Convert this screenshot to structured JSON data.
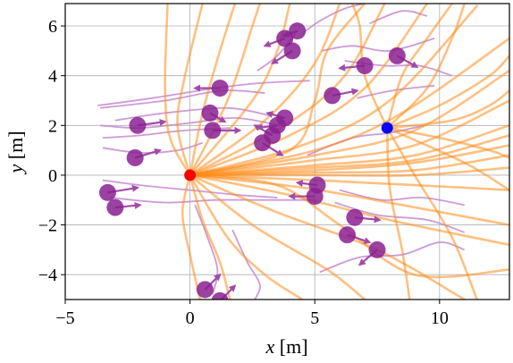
{
  "chart_data": {
    "type": "scatter",
    "xlabel_var": "x",
    "xlabel_unit": " [m]",
    "ylabel_var": "y",
    "ylabel_unit": " [m]",
    "xlim": [
      -5,
      12.8
    ],
    "ylim": [
      -5,
      6.9
    ],
    "xticks": [
      -5,
      0,
      5,
      10
    ],
    "yticks": [
      -4,
      -2,
      0,
      2,
      4,
      6
    ],
    "grid": true,
    "colors": {
      "trajectory": "#ff8c1a",
      "pedestrian": "#8a2090",
      "history": "#c48ad0",
      "start": "#ff0000",
      "goal": "#0000ff"
    },
    "start": [
      0,
      0
    ],
    "goal": [
      7.9,
      1.9
    ],
    "pedestrians": [
      {
        "x": 4.3,
        "y": 5.8,
        "dx": -0.55,
        "dy": -0.2
      },
      {
        "x": 3.8,
        "y": 5.5,
        "dx": -0.8,
        "dy": -0.3
      },
      {
        "x": 4.1,
        "y": 5.0,
        "dx": -0.8,
        "dy": -0.5
      },
      {
        "x": 7.0,
        "y": 4.4,
        "dx": -1.0,
        "dy": -0.1
      },
      {
        "x": 8.3,
        "y": 4.8,
        "dx": 0.8,
        "dy": -0.45
      },
      {
        "x": 1.2,
        "y": 3.5,
        "dx": -1.0,
        "dy": 0.0
      },
      {
        "x": 5.7,
        "y": 3.2,
        "dx": 1.0,
        "dy": 0.2
      },
      {
        "x": 0.8,
        "y": 2.5,
        "dx": 0.6,
        "dy": -0.35
      },
      {
        "x": 3.8,
        "y": 2.3,
        "dx": -0.7,
        "dy": 0.2
      },
      {
        "x": 3.5,
        "y": 2.0,
        "dx": -0.8,
        "dy": -0.1
      },
      {
        "x": 0.9,
        "y": 1.8,
        "dx": 1.1,
        "dy": 0.0
      },
      {
        "x": 3.3,
        "y": 1.6,
        "dx": -0.7,
        "dy": 0.4
      },
      {
        "x": 2.9,
        "y": 1.3,
        "dx": 0.8,
        "dy": -0.5
      },
      {
        "x": -2.1,
        "y": 2.0,
        "dx": 1.1,
        "dy": 0.15
      },
      {
        "x": -2.2,
        "y": 0.7,
        "dx": 1.0,
        "dy": 0.3
      },
      {
        "x": -3.3,
        "y": -0.7,
        "dx": 1.2,
        "dy": 0.2
      },
      {
        "x": -3.0,
        "y": -1.3,
        "dx": 1.0,
        "dy": 0.1
      },
      {
        "x": 5.1,
        "y": -0.4,
        "dx": -0.8,
        "dy": 0.1
      },
      {
        "x": 5.0,
        "y": -0.85,
        "dx": -1.0,
        "dy": 0.0
      },
      {
        "x": 6.6,
        "y": -1.7,
        "dx": 1.0,
        "dy": -0.1
      },
      {
        "x": 6.3,
        "y": -2.4,
        "dx": 0.9,
        "dy": -0.3
      },
      {
        "x": 7.5,
        "y": -3.0,
        "dx": -0.7,
        "dy": -0.6
      },
      {
        "x": 0.6,
        "y": -4.6,
        "dx": 0.6,
        "dy": 0.6
      },
      {
        "x": 1.2,
        "y": -5.05,
        "dx": 0.6,
        "dy": 0.6
      }
    ],
    "pedestrian_histories": [
      [
        [
          -3.7,
          2.8
        ],
        [
          -1.5,
          3.1
        ],
        [
          1.0,
          3.5
        ],
        [
          2.8,
          3.7
        ],
        [
          4.8,
          3.8
        ]
      ],
      [
        [
          -3.6,
          2.7
        ],
        [
          -1.0,
          3.0
        ],
        [
          1.3,
          3.4
        ],
        [
          3.0,
          3.3
        ]
      ],
      [
        [
          -3.0,
          2.2
        ],
        [
          -1.0,
          2.5
        ],
        [
          1.5,
          2.7
        ],
        [
          3.2,
          2.4
        ]
      ],
      [
        [
          -3.6,
          2.0
        ],
        [
          -2.0,
          1.9
        ],
        [
          0.0,
          2.1
        ],
        [
          1.8,
          2.3
        ],
        [
          3.6,
          2.0
        ]
      ],
      [
        [
          -3.5,
          1.5
        ],
        [
          -2.0,
          1.6
        ],
        [
          -0.2,
          1.8
        ],
        [
          1.6,
          1.9
        ]
      ],
      [
        [
          -3.5,
          1.1
        ],
        [
          -2.0,
          0.9
        ],
        [
          -0.5,
          1.0
        ],
        [
          0.5,
          1.3
        ]
      ],
      [
        [
          -3.5,
          -0.2
        ],
        [
          -2.0,
          -0.4
        ],
        [
          0.0,
          -0.6
        ],
        [
          2.0,
          -0.8
        ],
        [
          3.5,
          -0.9
        ]
      ],
      [
        [
          -3.2,
          -0.9
        ],
        [
          -1.0,
          -1.1
        ],
        [
          1.0,
          -1.0
        ],
        [
          3.0,
          -1.0
        ],
        [
          5.0,
          -1.0
        ]
      ],
      [
        [
          5.3,
          5.0
        ],
        [
          6.5,
          5.2
        ],
        [
          8.0,
          5.0
        ],
        [
          9.8,
          5.5
        ]
      ],
      [
        [
          7.2,
          6.1
        ],
        [
          8.5,
          6.6
        ],
        [
          9.5,
          6.4
        ]
      ],
      [
        [
          6.2,
          4.6
        ],
        [
          7.8,
          4.4
        ],
        [
          9.2,
          4.4
        ],
        [
          10.5,
          4.0
        ]
      ],
      [
        [
          6.7,
          3.1
        ],
        [
          8.1,
          3.4
        ],
        [
          9.8,
          3.6
        ]
      ],
      [
        [
          4.7,
          0.8
        ],
        [
          6.5,
          1.5
        ],
        [
          8.0,
          1.7
        ],
        [
          9.4,
          2.0
        ]
      ],
      [
        [
          6.0,
          -0.6
        ],
        [
          7.7,
          -1.0
        ],
        [
          9.3,
          -0.9
        ],
        [
          11.0,
          -1.2
        ]
      ],
      [
        [
          5.8,
          -1.1
        ],
        [
          7.5,
          -1.6
        ],
        [
          9.5,
          -1.8
        ],
        [
          11.0,
          -2.3
        ]
      ],
      [
        [
          5.2,
          -3.9
        ],
        [
          6.8,
          -3.3
        ],
        [
          8.5,
          -3.2
        ],
        [
          10.0,
          -2.7
        ],
        [
          11.0,
          -3.0
        ]
      ],
      [
        [
          1.7,
          -2.2
        ],
        [
          2.3,
          -3.5
        ],
        [
          2.8,
          -4.4
        ],
        [
          2.6,
          -5.0
        ]
      ],
      [
        [
          0.2,
          -1.2
        ],
        [
          0.7,
          -2.5
        ],
        [
          1.1,
          -3.8
        ],
        [
          0.9,
          -4.8
        ]
      ],
      [
        [
          4.5,
          5.7
        ],
        [
          5.2,
          6.2
        ],
        [
          6.2,
          6.7
        ],
        [
          7.0,
          6.9
        ]
      ],
      [
        [
          2.7,
          4.2
        ],
        [
          3.5,
          4.8
        ],
        [
          4.3,
          5.8
        ]
      ]
    ],
    "orange_paths": [
      [
        [
          0,
          0
        ],
        [
          -0.8,
          1.5
        ],
        [
          -1.0,
          3.5
        ],
        [
          -0.9,
          6.9
        ]
      ],
      [
        [
          0,
          0
        ],
        [
          -0.5,
          2.0
        ],
        [
          -0.2,
          4.0
        ],
        [
          0.5,
          6.9
        ]
      ],
      [
        [
          0,
          0
        ],
        [
          0.5,
          2.5
        ],
        [
          1.2,
          5.0
        ],
        [
          1.8,
          6.9
        ]
      ],
      [
        [
          0,
          0
        ],
        [
          1.5,
          3.0
        ],
        [
          2.5,
          6.0
        ],
        [
          2.8,
          6.9
        ]
      ],
      [
        [
          0,
          0
        ],
        [
          2.5,
          3.0
        ],
        [
          3.5,
          5.0
        ],
        [
          4.0,
          6.9
        ]
      ],
      [
        [
          0,
          0
        ],
        [
          3.0,
          2.2
        ],
        [
          5.0,
          4.5
        ],
        [
          6.0,
          6.9
        ]
      ],
      [
        [
          0,
          0
        ],
        [
          3.8,
          2.0
        ],
        [
          6.2,
          4.0
        ],
        [
          7.8,
          6.9
        ]
      ],
      [
        [
          0,
          0
        ],
        [
          4.0,
          1.6
        ],
        [
          7.0,
          3.5
        ],
        [
          9.5,
          6.9
        ]
      ],
      [
        [
          0,
          0
        ],
        [
          4.5,
          1.2
        ],
        [
          8.0,
          3.0
        ],
        [
          11.5,
          6.8
        ]
      ],
      [
        [
          0,
          0
        ],
        [
          5.0,
          1.0
        ],
        [
          8.5,
          2.5
        ],
        [
          12.8,
          5.5
        ]
      ],
      [
        [
          0,
          0
        ],
        [
          5.0,
          0.8
        ],
        [
          9.0,
          1.8
        ],
        [
          12.8,
          4.2
        ]
      ],
      [
        [
          0,
          0
        ],
        [
          5.0,
          0.6
        ],
        [
          9.0,
          1.2
        ],
        [
          12.8,
          3.0
        ]
      ],
      [
        [
          0,
          0
        ],
        [
          5.0,
          0.4
        ],
        [
          9.0,
          0.8
        ],
        [
          12.8,
          2.0
        ]
      ],
      [
        [
          0,
          0
        ],
        [
          5.0,
          0.3
        ],
        [
          9.0,
          0.6
        ],
        [
          12.8,
          1.6
        ]
      ],
      [
        [
          0,
          0
        ],
        [
          5.0,
          0.2
        ],
        [
          9.0,
          0.5
        ],
        [
          12.8,
          1.2
        ]
      ],
      [
        [
          0,
          0
        ],
        [
          5.0,
          0.1
        ],
        [
          9.0,
          0.2
        ],
        [
          12.8,
          0.8
        ]
      ],
      [
        [
          0,
          0
        ],
        [
          5.0,
          0.0
        ],
        [
          9.0,
          0.0
        ],
        [
          12.8,
          0.3
        ]
      ],
      [
        [
          0,
          0
        ],
        [
          5.0,
          -0.2
        ],
        [
          9.0,
          -0.4
        ],
        [
          12.8,
          -0.6
        ]
      ],
      [
        [
          0,
          0
        ],
        [
          4.5,
          -0.5
        ],
        [
          8.5,
          -1.2
        ],
        [
          12.8,
          -2.0
        ]
      ],
      [
        [
          0,
          0
        ],
        [
          4.0,
          -0.8
        ],
        [
          8.0,
          -1.8
        ],
        [
          12.8,
          -2.8
        ]
      ],
      [
        [
          0,
          0
        ],
        [
          3.5,
          -1.5
        ],
        [
          7.5,
          -3.0
        ],
        [
          11.0,
          -5.0
        ]
      ],
      [
        [
          0,
          0
        ],
        [
          2.5,
          -2.0
        ],
        [
          5.5,
          -3.8
        ],
        [
          7.0,
          -5.0
        ]
      ],
      [
        [
          0,
          0
        ],
        [
          1.5,
          -2.5
        ],
        [
          3.0,
          -4.0
        ],
        [
          4.5,
          -5.0
        ]
      ],
      [
        [
          0,
          0
        ],
        [
          0.5,
          -1.8
        ],
        [
          1.2,
          -3.5
        ],
        [
          1.6,
          -5.0
        ]
      ],
      [
        [
          0,
          0
        ],
        [
          -0.3,
          -1.5
        ],
        [
          0.0,
          -3.2
        ],
        [
          0.4,
          -5.0
        ]
      ],
      [
        [
          0,
          0
        ],
        [
          4.0,
          1.0
        ],
        [
          5.0,
          3.0
        ],
        [
          5.5,
          5.0
        ],
        [
          7.0,
          6.9
        ]
      ],
      [
        [
          0,
          0
        ],
        [
          3.5,
          -0.4
        ],
        [
          6.0,
          -2.0
        ],
        [
          9.0,
          -4.0
        ],
        [
          12.8,
          -3.8
        ]
      ],
      [
        [
          7.9,
          1.9
        ],
        [
          9.5,
          3.5
        ],
        [
          10.5,
          5.5
        ],
        [
          11.0,
          6.9
        ]
      ],
      [
        [
          7.9,
          1.9
        ],
        [
          10.0,
          2.8
        ],
        [
          12.0,
          4.0
        ],
        [
          12.8,
          4.8
        ]
      ],
      [
        [
          7.9,
          1.9
        ],
        [
          10.0,
          1.5
        ],
        [
          12.0,
          1.0
        ],
        [
          12.8,
          0.7
        ]
      ],
      [
        [
          7.9,
          1.9
        ],
        [
          9.0,
          0.0
        ],
        [
          10.5,
          -2.5
        ],
        [
          11.5,
          -5.0
        ]
      ],
      [
        [
          7.9,
          1.9
        ],
        [
          8.0,
          -0.5
        ],
        [
          8.5,
          -3.0
        ],
        [
          8.8,
          -5.0
        ]
      ],
      [
        [
          7.9,
          1.9
        ],
        [
          7.0,
          4.0
        ],
        [
          6.8,
          6.0
        ],
        [
          6.5,
          6.9
        ]
      ],
      [
        [
          7.9,
          1.9
        ],
        [
          8.5,
          4.0
        ],
        [
          9.5,
          5.5
        ],
        [
          10.5,
          6.9
        ]
      ],
      [
        [
          7.9,
          1.9
        ],
        [
          10.5,
          2.2
        ],
        [
          12.0,
          2.8
        ],
        [
          12.8,
          3.4
        ]
      ],
      [
        [
          7.9,
          1.9
        ],
        [
          11.0,
          0.5
        ],
        [
          12.8,
          -0.6
        ]
      ]
    ]
  }
}
